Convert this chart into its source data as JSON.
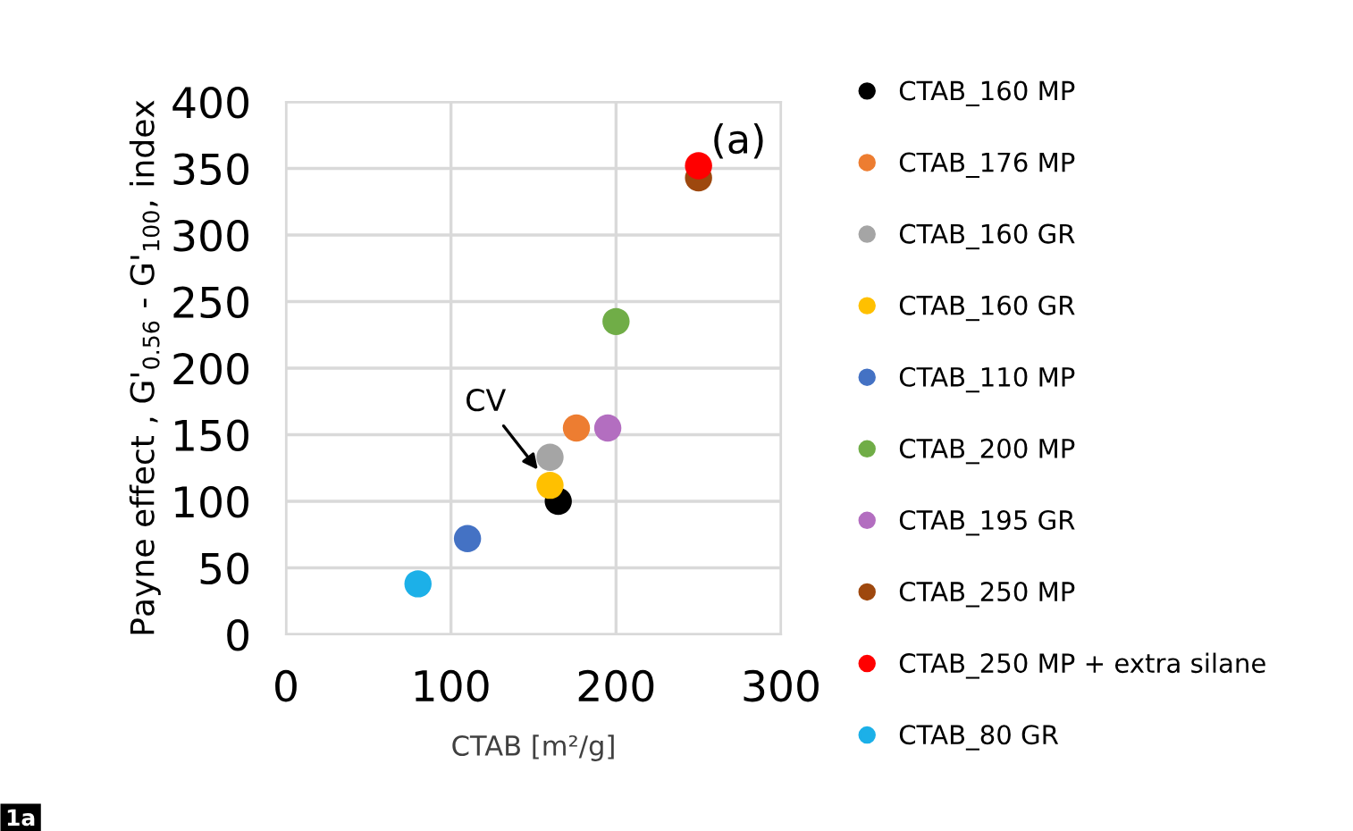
{
  "chart_data": {
    "type": "scatter",
    "xlabel": "CTAB [m²/g]",
    "ylabel": "Payne effect , G'$_{0.56}$ - G'$_{100}$, index",
    "xlim": [
      0,
      300
    ],
    "xticks": [
      0,
      100,
      200,
      300
    ],
    "ylim": [
      0,
      400
    ],
    "yticks": [
      0,
      50,
      100,
      150,
      200,
      250,
      300,
      350,
      400
    ],
    "grid": true,
    "legend": "right",
    "marker": "circle",
    "series": [
      {
        "name": "CTAB_160 MP",
        "color": "#000000",
        "x": [
          165
        ],
        "values": [
          100
        ]
      },
      {
        "name": "CTAB_176 MP",
        "color": "#ed7d31",
        "x": [
          176
        ],
        "values": [
          155
        ]
      },
      {
        "name": "CTAB_160 GR",
        "color": "#a5a5a5",
        "x": [
          160
        ],
        "values": [
          133
        ]
      },
      {
        "name": "CTAB_160 GR",
        "color": "#ffc000",
        "x": [
          160
        ],
        "values": [
          112
        ]
      },
      {
        "name": "CTAB_110 MP",
        "color": "#4472c4",
        "x": [
          110
        ],
        "values": [
          72
        ]
      },
      {
        "name": "CTAB_200 MP",
        "color": "#70ad47",
        "x": [
          200
        ],
        "values": [
          235
        ]
      },
      {
        "name": "CTAB_195 GR",
        "color": "#b36ec0",
        "x": [
          195
        ],
        "values": [
          155
        ]
      },
      {
        "name": "CTAB_250 MP",
        "color": "#9e480e",
        "x": [
          250
        ],
        "values": [
          343
        ]
      },
      {
        "name": "CTAB_250 MP + extra silane",
        "color": "#ff0000",
        "x": [
          250
        ],
        "values": [
          352
        ]
      },
      {
        "name": "CTAB_80 GR",
        "color": "#1cb0e8",
        "x": [
          80
        ],
        "values": [
          38
        ]
      }
    ],
    "annotations": [
      {
        "text": "CV",
        "x": 160,
        "y": 112
      },
      "(a)",
      "1a"
    ]
  }
}
